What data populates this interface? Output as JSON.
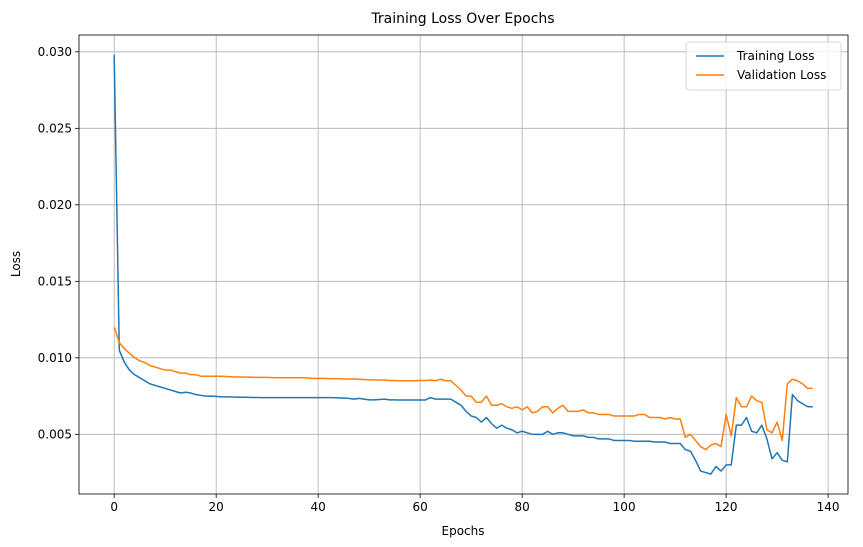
{
  "chart_data": {
    "type": "line",
    "title": "Training Loss Over Epochs",
    "xlabel": "Epochs",
    "ylabel": "Loss",
    "xlim": [
      -6.9,
      143.9
    ],
    "ylim": [
      0.0011,
      0.0311
    ],
    "xticks": [
      0,
      20,
      40,
      60,
      80,
      100,
      120,
      140
    ],
    "yticks": [
      0.005,
      0.01,
      0.015,
      0.02,
      0.025,
      0.03
    ],
    "xtick_labels": [
      "0",
      "20",
      "40",
      "60",
      "80",
      "100",
      "120",
      "140"
    ],
    "ytick_labels": [
      "0.005",
      "0.010",
      "0.015",
      "0.020",
      "0.025",
      "0.030"
    ],
    "grid": true,
    "legend_position": "top-right",
    "x": [
      0,
      1,
      2,
      3,
      4,
      5,
      6,
      7,
      8,
      9,
      10,
      11,
      12,
      13,
      14,
      15,
      16,
      17,
      18,
      19,
      20,
      21,
      22,
      23,
      24,
      25,
      26,
      27,
      28,
      29,
      30,
      31,
      32,
      33,
      34,
      35,
      36,
      37,
      38,
      39,
      40,
      41,
      42,
      43,
      44,
      45,
      46,
      47,
      48,
      49,
      50,
      51,
      52,
      53,
      54,
      55,
      56,
      57,
      58,
      59,
      60,
      61,
      62,
      63,
      64,
      65,
      66,
      67,
      68,
      69,
      70,
      71,
      72,
      73,
      74,
      75,
      76,
      77,
      78,
      79,
      80,
      81,
      82,
      83,
      84,
      85,
      86,
      87,
      88,
      89,
      90,
      91,
      92,
      93,
      94,
      95,
      96,
      97,
      98,
      99,
      100,
      101,
      102,
      103,
      104,
      105,
      106,
      107,
      108,
      109,
      110,
      111,
      112,
      113,
      114,
      115,
      116,
      117,
      118,
      119,
      120,
      121,
      122,
      123,
      124,
      125,
      126,
      127,
      128,
      129,
      130,
      131,
      132,
      133,
      134,
      135,
      136,
      137
    ],
    "series": [
      {
        "name": "Training Loss",
        "color": "#1f77b4",
        "values": [
          0.0298,
          0.0105,
          0.0097,
          0.0092,
          0.0089,
          0.0087,
          0.0085,
          0.0083,
          0.0082,
          0.0081,
          0.008,
          0.0079,
          0.0078,
          0.0077,
          0.00775,
          0.0077,
          0.0076,
          0.00755,
          0.0075,
          0.0075,
          0.00748,
          0.00745,
          0.00745,
          0.00744,
          0.00743,
          0.00742,
          0.00742,
          0.00741,
          0.00741,
          0.0074,
          0.0074,
          0.0074,
          0.0074,
          0.0074,
          0.0074,
          0.0074,
          0.0074,
          0.0074,
          0.0074,
          0.0074,
          0.0074,
          0.0074,
          0.0074,
          0.0074,
          0.00738,
          0.00737,
          0.00735,
          0.0073,
          0.00735,
          0.0073,
          0.00725,
          0.00725,
          0.00728,
          0.0073,
          0.00725,
          0.00725,
          0.00724,
          0.00724,
          0.00724,
          0.00724,
          0.00724,
          0.00724,
          0.0074,
          0.0073,
          0.0073,
          0.0073,
          0.0073,
          0.0071,
          0.0069,
          0.0065,
          0.0062,
          0.0061,
          0.0058,
          0.0061,
          0.0057,
          0.0054,
          0.0056,
          0.0054,
          0.0053,
          0.0051,
          0.0052,
          0.0051,
          0.005,
          0.005,
          0.005,
          0.0052,
          0.005,
          0.0051,
          0.0051,
          0.005,
          0.0049,
          0.0049,
          0.0049,
          0.0048,
          0.0048,
          0.0047,
          0.0047,
          0.0047,
          0.0046,
          0.0046,
          0.0046,
          0.0046,
          0.00455,
          0.00455,
          0.00455,
          0.00455,
          0.0045,
          0.0045,
          0.0045,
          0.0044,
          0.0044,
          0.0044,
          0.004,
          0.0039,
          0.0033,
          0.0026,
          0.0025,
          0.0024,
          0.0029,
          0.0026,
          0.003,
          0.003,
          0.0056,
          0.0056,
          0.0061,
          0.0052,
          0.0051,
          0.0056,
          0.0047,
          0.0034,
          0.0038,
          0.0033,
          0.0032,
          0.0076,
          0.0072,
          0.007,
          0.0068,
          0.0068
        ]
      },
      {
        "name": "Validation Loss",
        "color": "#ff7f0e",
        "values": [
          0.012,
          0.011,
          0.0106,
          0.0103,
          0.01,
          0.0098,
          0.0097,
          0.0095,
          0.0094,
          0.0093,
          0.0092,
          0.0092,
          0.0091,
          0.009,
          0.009,
          0.0089,
          0.0089,
          0.0088,
          0.0088,
          0.0088,
          0.0088,
          0.0088,
          0.00878,
          0.00876,
          0.00875,
          0.00875,
          0.00874,
          0.00873,
          0.00872,
          0.00872,
          0.00872,
          0.00871,
          0.0087,
          0.0087,
          0.0087,
          0.0087,
          0.0087,
          0.0087,
          0.00868,
          0.00866,
          0.00866,
          0.00866,
          0.00864,
          0.00864,
          0.00864,
          0.00862,
          0.00862,
          0.00862,
          0.0086,
          0.00858,
          0.00856,
          0.00856,
          0.00855,
          0.00855,
          0.00852,
          0.00852,
          0.0085,
          0.0085,
          0.0085,
          0.0085,
          0.00852,
          0.00852,
          0.00855,
          0.0085,
          0.0086,
          0.0085,
          0.0085,
          0.0082,
          0.0079,
          0.0075,
          0.0075,
          0.0071,
          0.0071,
          0.0075,
          0.0069,
          0.0069,
          0.007,
          0.0068,
          0.0067,
          0.0068,
          0.0066,
          0.0068,
          0.0064,
          0.0065,
          0.0068,
          0.0068,
          0.0064,
          0.0067,
          0.0069,
          0.0065,
          0.0065,
          0.0065,
          0.0066,
          0.0064,
          0.0064,
          0.0063,
          0.0063,
          0.0063,
          0.0062,
          0.0062,
          0.0062,
          0.0062,
          0.0062,
          0.0063,
          0.0063,
          0.0061,
          0.0061,
          0.0061,
          0.006,
          0.0061,
          0.006,
          0.006,
          0.0048,
          0.005,
          0.0046,
          0.0042,
          0.004,
          0.0043,
          0.0044,
          0.0042,
          0.0063,
          0.0049,
          0.0074,
          0.0068,
          0.0068,
          0.0075,
          0.0072,
          0.0071,
          0.0053,
          0.0051,
          0.0058,
          0.0046,
          0.0083,
          0.0086,
          0.0085,
          0.0083,
          0.008,
          0.008
        ]
      }
    ]
  }
}
